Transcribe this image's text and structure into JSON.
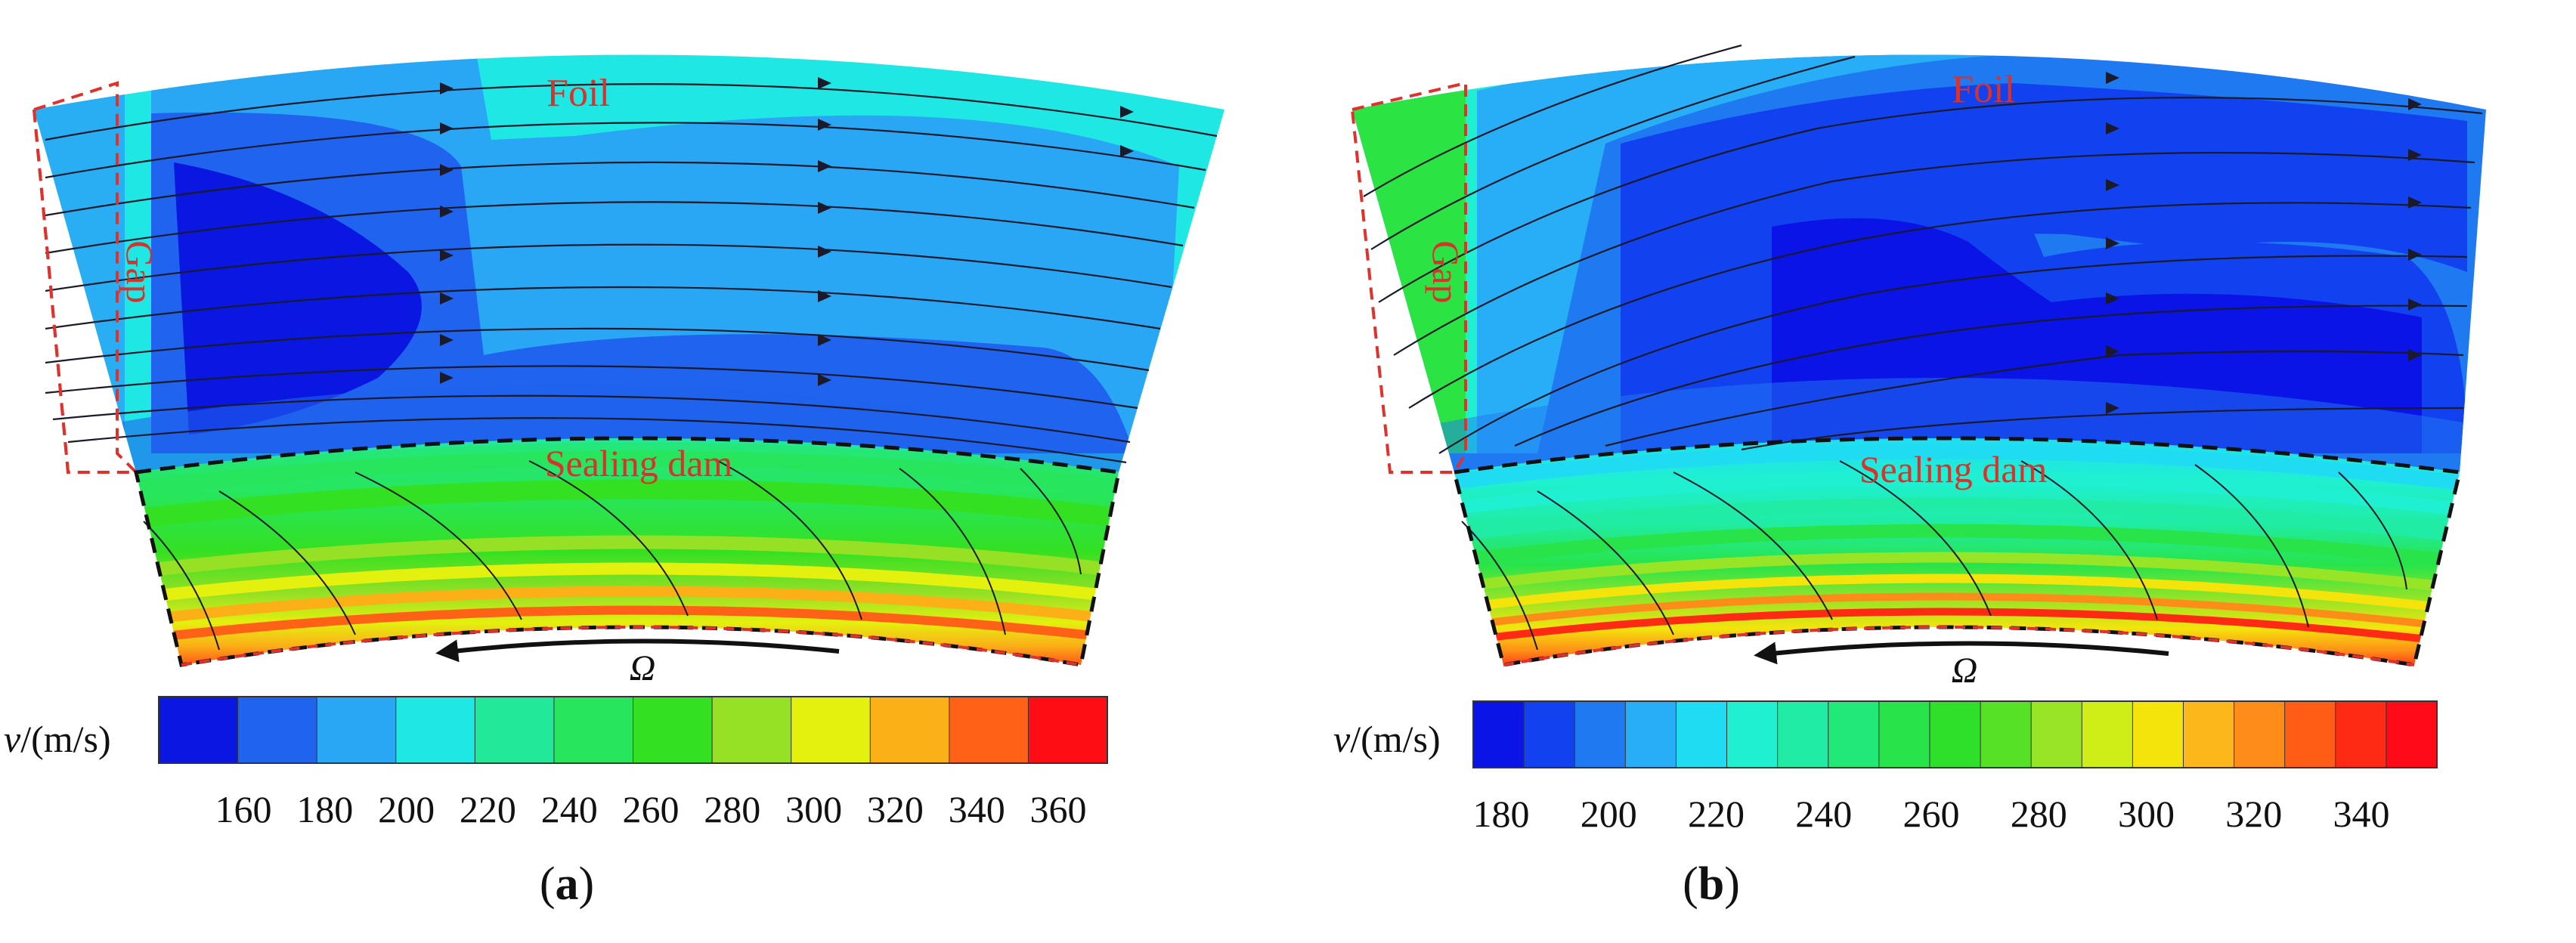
{
  "panels": [
    {
      "id": "a",
      "caption": "a",
      "labels": {
        "foil": "Foil",
        "gap": "Gap",
        "sealing_dam": "Sealing dam",
        "rotation": "Ω"
      },
      "colorbar": {
        "unit_var": "v",
        "unit": "/(m/s)",
        "colors": [
          "#0a17e0",
          "#1f63ee",
          "#2aa7f4",
          "#1fe8e4",
          "#22e89a",
          "#27e65e",
          "#33e022",
          "#96e025",
          "#e4f00e",
          "#fbb018",
          "#ff6116",
          "#ff0d14"
        ],
        "ticks": [
          "160",
          "180",
          "200",
          "220",
          "240",
          "260",
          "280",
          "300",
          "320",
          "340",
          "360"
        ]
      }
    },
    {
      "id": "b",
      "caption": "b",
      "labels": {
        "foil": "Foil",
        "gap": "Gap",
        "sealing_dam": "Sealing dam",
        "rotation": "Ω"
      },
      "colorbar": {
        "unit_var": "v",
        "unit": "/(m/s)",
        "colors": [
          "#0a14e6",
          "#1242f0",
          "#1f7af2",
          "#27aef6",
          "#20dcf2",
          "#1ff0d2",
          "#20eca6",
          "#22e878",
          "#28e44a",
          "#2ee02a",
          "#56e026",
          "#98e426",
          "#cfee18",
          "#f4e40c",
          "#fcb81a",
          "#fe8c18",
          "#ff5c16",
          "#ff2a14",
          "#ff0a18"
        ],
        "ticks": [
          "180",
          "200",
          "220",
          "240",
          "260",
          "280",
          "300",
          "320",
          "340"
        ]
      }
    }
  ]
}
